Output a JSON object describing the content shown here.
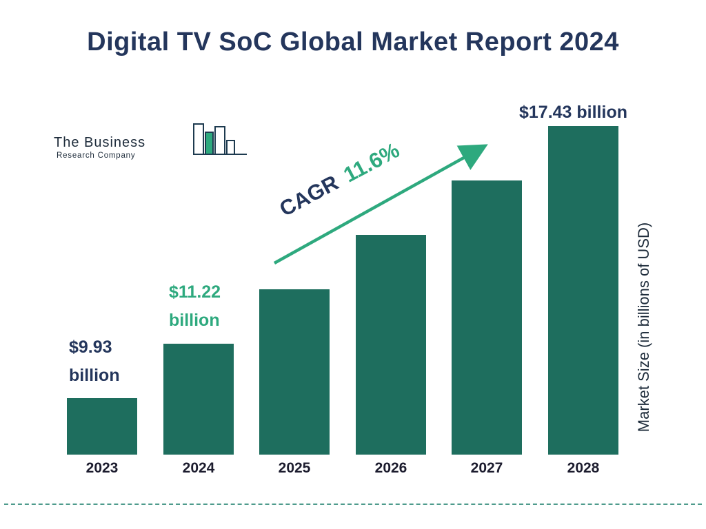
{
  "title": "Digital TV SoC Global Market Report 2024",
  "logo": {
    "line1": "The Business",
    "line2": "Research Company"
  },
  "chart_data": {
    "type": "bar",
    "title": "Digital TV SoC Global Market Report 2024",
    "categories": [
      "2023",
      "2024",
      "2025",
      "2026",
      "2027",
      "2028"
    ],
    "values": [
      9.93,
      11.22,
      12.52,
      13.97,
      15.59,
      17.43
    ],
    "unit": "billions of USD",
    "ylabel": "Market Size (in billions of USD)",
    "xlabel": "",
    "legend": "none",
    "grid": false,
    "bar_color": "#1E6E5E",
    "accent_green": "#2EA97E",
    "navy": "#24365C",
    "labeled_values": {
      "2023": "$9.93 billion",
      "2024": "$11.22 billion",
      "2028": "$17.43 billion"
    },
    "cagr": {
      "label": "CAGR",
      "value": "11.6%"
    }
  }
}
